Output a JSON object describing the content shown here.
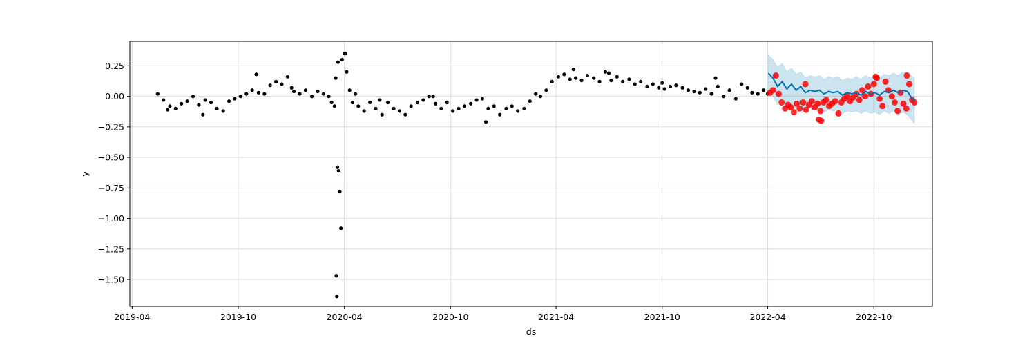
{
  "chart_data": {
    "type": "scatter",
    "title": "",
    "xlabel": "ds",
    "ylabel": "y",
    "xlim": [
      "2019-03-28",
      "2023-01-10"
    ],
    "ylim": [
      -1.72,
      0.45
    ],
    "grid": true,
    "legend": "none",
    "x_ticks": [
      "2019-04",
      "2019-10",
      "2020-04",
      "2020-10",
      "2021-04",
      "2021-10",
      "2022-04",
      "2022-10"
    ],
    "y_ticks": [
      0.25,
      0.0,
      -0.25,
      -0.5,
      -0.75,
      -1.0,
      -1.25,
      -1.5
    ],
    "colors": {
      "history": "#000000",
      "actual": "#ff0000",
      "forecast": "#0072b2",
      "interval": "#0072b2"
    },
    "history": {
      "x": [
        "2019-05-15",
        "2019-05-25",
        "2019-06-05",
        "2019-06-15",
        "2019-06-25",
        "2019-07-05",
        "2019-07-15",
        "2019-07-25",
        "2019-08-05",
        "2019-08-15",
        "2019-08-25",
        "2019-09-05",
        "2019-09-15",
        "2019-09-25",
        "2019-10-05",
        "2019-10-15",
        "2019-10-25",
        "2019-11-05",
        "2019-11-15",
        "2019-11-25",
        "2019-12-05",
        "2019-12-15",
        "2019-12-25",
        "2020-01-05",
        "2020-01-15",
        "2020-01-25",
        "2020-02-05",
        "2020-02-15",
        "2020-02-25",
        "2020-03-05",
        "2020-03-10",
        "2020-03-15",
        "2020-03-17",
        "2020-03-18",
        "2020-03-19",
        "2020-03-20",
        "2020-03-22",
        "2020-03-24",
        "2020-03-26",
        "2020-03-28",
        "2020-04-01",
        "2020-04-05",
        "2020-04-10",
        "2020-04-15",
        "2020-04-25",
        "2020-05-05",
        "2020-05-15",
        "2020-05-25",
        "2020-06-05",
        "2020-06-15",
        "2020-06-25",
        "2020-07-05",
        "2020-07-15",
        "2020-07-25",
        "2020-08-05",
        "2020-08-15",
        "2020-08-25",
        "2020-09-05",
        "2020-09-15",
        "2020-09-25",
        "2020-10-05",
        "2020-10-15",
        "2020-10-25",
        "2020-11-05",
        "2020-11-15",
        "2020-11-25",
        "2020-12-05",
        "2020-12-15",
        "2020-12-25",
        "2021-01-05",
        "2021-01-15",
        "2021-01-25",
        "2021-02-05",
        "2021-02-15",
        "2021-02-25",
        "2021-03-05",
        "2021-03-15",
        "2021-03-25",
        "2021-04-05",
        "2021-04-15",
        "2021-04-25",
        "2021-05-05",
        "2021-05-15",
        "2021-05-25",
        "2021-06-05",
        "2021-06-15",
        "2021-06-25",
        "2021-07-05",
        "2021-07-15",
        "2021-07-25",
        "2021-08-05",
        "2021-08-15",
        "2021-08-25",
        "2021-09-05",
        "2021-09-15",
        "2021-09-25",
        "2021-10-05",
        "2021-10-15",
        "2021-10-25",
        "2021-11-05",
        "2021-11-15",
        "2021-11-25",
        "2021-12-05",
        "2021-12-15",
        "2021-12-25",
        "2022-01-05",
        "2022-01-15",
        "2022-01-25",
        "2022-02-05",
        "2022-02-15",
        "2022-02-25",
        "2022-03-05",
        "2022-03-15",
        "2022-03-25",
        "2022-04-01"
      ],
      "y": [
        0.02,
        -0.03,
        -0.08,
        -0.1,
        -0.06,
        -0.04,
        0.0,
        -0.07,
        -0.03,
        -0.05,
        -0.1,
        -0.12,
        -0.04,
        -0.02,
        0.0,
        0.02,
        0.05,
        0.03,
        0.02,
        0.09,
        0.12,
        0.1,
        0.16,
        0.04,
        0.02,
        0.05,
        0.0,
        0.04,
        0.02,
        0.0,
        -0.05,
        -0.08,
        0.15,
        -1.47,
        -1.64,
        -0.58,
        -0.61,
        -0.78,
        -1.08,
        0.3,
        0.35,
        0.2,
        0.05,
        -0.05,
        -0.08,
        -0.12,
        -0.05,
        -0.1,
        -0.15,
        -0.05,
        -0.1,
        -0.12,
        -0.15,
        -0.08,
        -0.05,
        -0.03,
        0.0,
        -0.06,
        -0.1,
        -0.05,
        -0.12,
        -0.1,
        -0.08,
        -0.06,
        -0.03,
        -0.02,
        -0.1,
        -0.08,
        -0.15,
        -0.1,
        -0.08,
        -0.12,
        -0.1,
        -0.04,
        0.02,
        0.0,
        0.05,
        0.12,
        0.16,
        0.18,
        0.14,
        0.15,
        0.13,
        0.17,
        0.15,
        0.12,
        0.2,
        0.13,
        0.16,
        0.12,
        0.14,
        0.1,
        0.12,
        0.08,
        0.1,
        0.07,
        0.06,
        0.08,
        0.09,
        0.07,
        0.05,
        0.04,
        0.03,
        0.06,
        0.02,
        0.08,
        0.0,
        0.05,
        -0.02,
        0.1,
        0.07,
        0.03,
        0.02,
        0.05,
        0.02
      ],
      "x_extra": [
        "2019-06-01",
        "2019-08-01",
        "2019-11-01",
        "2020-01-01",
        "2020-03-21",
        "2020-04-03",
        "2020-04-20",
        "2020-06-01",
        "2020-09-01",
        "2020-12-01",
        "2021-05-01",
        "2021-07-01",
        "2021-10-01",
        "2022-01-01"
      ],
      "y_extra": [
        -0.11,
        -0.15,
        0.18,
        0.07,
        0.28,
        0.35,
        0.02,
        -0.03,
        0.0,
        -0.21,
        0.22,
        0.19,
        0.11,
        0.15
      ]
    },
    "actual": {
      "x": [
        "2022-04-05",
        "2022-04-10",
        "2022-04-15",
        "2022-04-20",
        "2022-04-25",
        "2022-05-01",
        "2022-05-06",
        "2022-05-11",
        "2022-05-16",
        "2022-05-21",
        "2022-05-26",
        "2022-06-01",
        "2022-06-06",
        "2022-06-11",
        "2022-06-16",
        "2022-06-21",
        "2022-06-26",
        "2022-07-01",
        "2022-07-06",
        "2022-07-11",
        "2022-07-16",
        "2022-07-21",
        "2022-07-26",
        "2022-08-01",
        "2022-08-06",
        "2022-08-11",
        "2022-08-16",
        "2022-08-21",
        "2022-08-26",
        "2022-09-01",
        "2022-09-06",
        "2022-09-11",
        "2022-09-16",
        "2022-09-21",
        "2022-09-26",
        "2022-10-01",
        "2022-10-06",
        "2022-10-11",
        "2022-10-16",
        "2022-10-21",
        "2022-10-26",
        "2022-11-01",
        "2022-11-06",
        "2022-11-11",
        "2022-11-16",
        "2022-11-21",
        "2022-11-26",
        "2022-12-01",
        "2022-12-06",
        "2022-12-10",
        "2022-06-05",
        "2022-06-28",
        "2022-07-02",
        "2022-10-04",
        "2022-11-27"
      ],
      "y": [
        0.03,
        0.05,
        0.17,
        0.02,
        -0.05,
        -0.1,
        -0.07,
        -0.09,
        -0.13,
        -0.06,
        -0.1,
        -0.05,
        -0.11,
        -0.07,
        -0.04,
        -0.09,
        -0.06,
        -0.12,
        -0.05,
        -0.03,
        -0.08,
        -0.06,
        -0.04,
        -0.14,
        -0.05,
        -0.02,
        0.0,
        -0.04,
        -0.01,
        0.02,
        -0.03,
        0.05,
        0.0,
        0.08,
        0.02,
        0.1,
        0.15,
        -0.02,
        -0.08,
        0.12,
        0.05,
        0.0,
        -0.05,
        -0.12,
        0.03,
        -0.06,
        -0.1,
        0.1,
        -0.03,
        -0.05,
        0.1,
        -0.19,
        -0.2,
        0.16,
        0.17
      ]
    },
    "forecast": {
      "x": [
        "2022-04-02",
        "2022-04-10",
        "2022-04-18",
        "2022-04-26",
        "2022-05-04",
        "2022-05-12",
        "2022-05-20",
        "2022-05-28",
        "2022-06-05",
        "2022-06-13",
        "2022-06-21",
        "2022-06-29",
        "2022-07-07",
        "2022-07-15",
        "2022-07-23",
        "2022-07-31",
        "2022-08-08",
        "2022-08-16",
        "2022-08-24",
        "2022-09-01",
        "2022-09-09",
        "2022-09-17",
        "2022-09-25",
        "2022-10-03",
        "2022-10-11",
        "2022-10-19",
        "2022-10-27",
        "2022-11-04",
        "2022-11-12",
        "2022-11-20",
        "2022-11-28",
        "2022-12-06",
        "2022-12-10"
      ],
      "y": [
        0.19,
        0.15,
        0.08,
        0.12,
        0.06,
        0.1,
        0.05,
        0.08,
        0.03,
        0.05,
        0.04,
        0.05,
        0.02,
        0.04,
        0.03,
        0.04,
        0.01,
        0.03,
        0.02,
        0.03,
        0.01,
        0.04,
        0.02,
        0.03,
        0.01,
        0.04,
        0.03,
        0.05,
        0.03,
        0.05,
        0.04,
        -0.02,
        -0.04
      ],
      "upper": [
        0.34,
        0.3,
        0.24,
        0.27,
        0.2,
        0.23,
        0.18,
        0.2,
        0.15,
        0.17,
        0.16,
        0.17,
        0.14,
        0.16,
        0.15,
        0.16,
        0.13,
        0.15,
        0.14,
        0.16,
        0.14,
        0.17,
        0.15,
        0.17,
        0.15,
        0.18,
        0.17,
        0.19,
        0.17,
        0.2,
        0.19,
        0.16,
        0.15
      ],
      "lower": [
        0.05,
        0.0,
        -0.07,
        -0.03,
        -0.09,
        -0.05,
        -0.1,
        -0.07,
        -0.12,
        -0.1,
        -0.11,
        -0.1,
        -0.13,
        -0.11,
        -0.12,
        -0.11,
        -0.14,
        -0.12,
        -0.13,
        -0.12,
        -0.14,
        -0.12,
        -0.14,
        -0.13,
        -0.15,
        -0.12,
        -0.14,
        -0.12,
        -0.15,
        -0.13,
        -0.15,
        -0.2,
        -0.22
      ]
    }
  }
}
